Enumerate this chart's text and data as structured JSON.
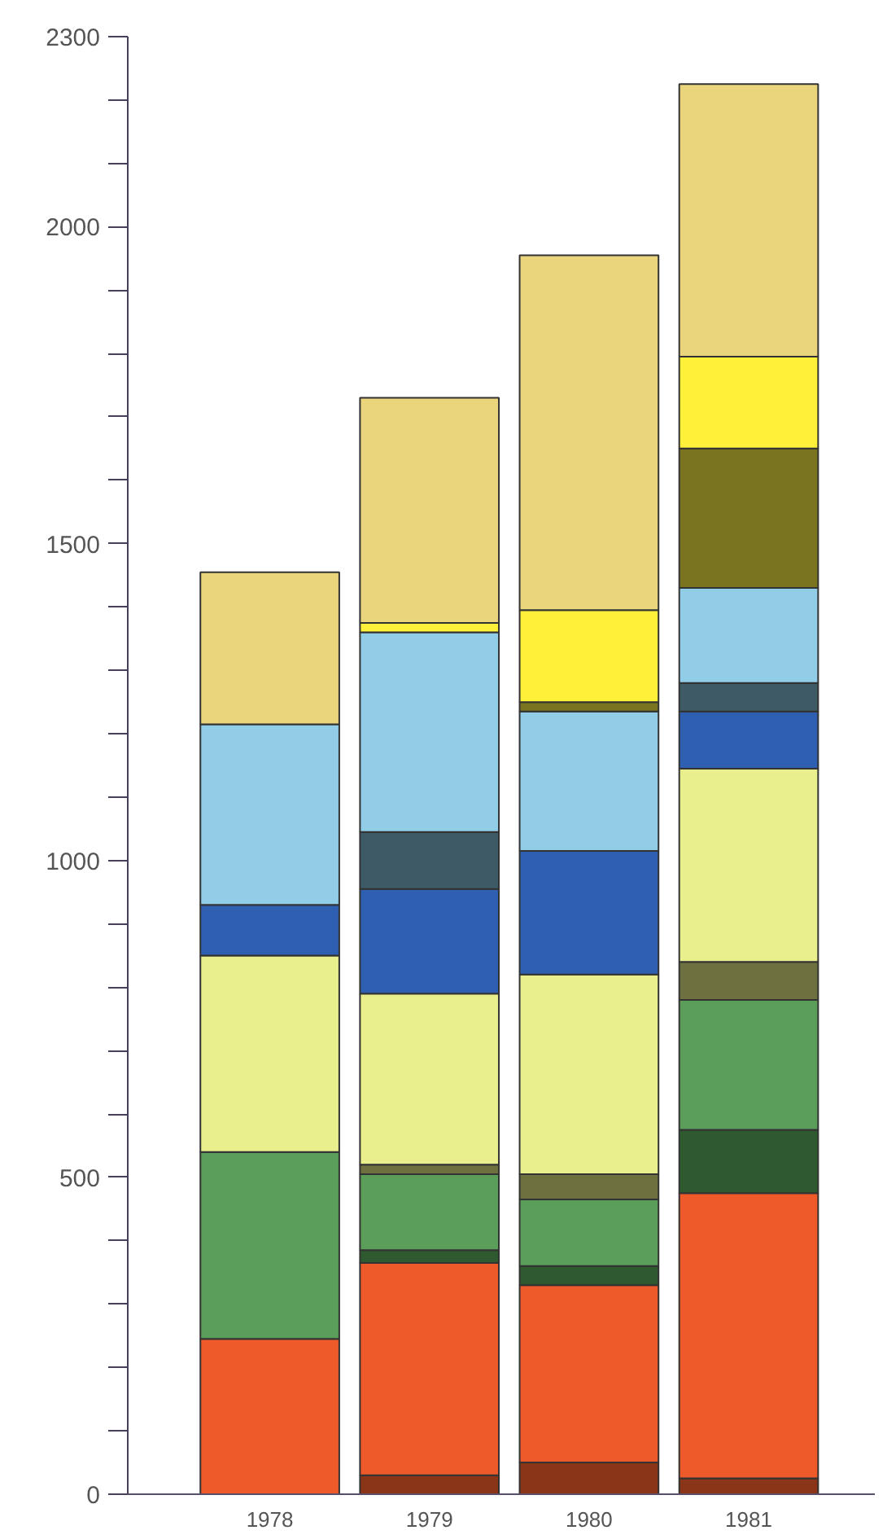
{
  "chart_data": {
    "type": "bar",
    "stacked": true,
    "categories": [
      "1978",
      "1979",
      "1980",
      "1981"
    ],
    "ylim": [
      0,
      2300
    ],
    "yticks": [
      0,
      {
        "value": 100,
        "label": null
      },
      {
        "value": 200,
        "label": null
      },
      {
        "value": 300,
        "label": null
      },
      {
        "value": 400,
        "label": null
      },
      500,
      {
        "value": 600,
        "label": null
      },
      {
        "value": 700,
        "label": null
      },
      {
        "value": 800,
        "label": null
      },
      {
        "value": 900,
        "label": null
      },
      1000,
      {
        "value": 1100,
        "label": null
      },
      {
        "value": 1200,
        "label": null
      },
      {
        "value": 1300,
        "label": null
      },
      {
        "value": 1400,
        "label": null
      },
      1500,
      {
        "value": 1600,
        "label": null
      },
      {
        "value": 1700,
        "label": null
      },
      {
        "value": 1800,
        "label": null
      },
      {
        "value": 1900,
        "label": null
      },
      2000,
      {
        "value": 2100,
        "label": null
      },
      {
        "value": 2200,
        "label": null
      },
      2300
    ],
    "grid": false,
    "series": [
      {
        "color": "#8a3418",
        "values": [
          null,
          30,
          50,
          25
        ]
      },
      {
        "color": "#ee5a2a",
        "values": [
          245,
          335,
          280,
          450
        ]
      },
      {
        "color": "#2f5a2f",
        "values": [
          null,
          20,
          30,
          100
        ]
      },
      {
        "color": "#5a9e5a",
        "values": [
          295,
          120,
          105,
          205
        ]
      },
      {
        "color": "#6e7040",
        "values": [
          null,
          15,
          40,
          60
        ]
      },
      {
        "color": "#e8ef8c",
        "values": [
          310,
          270,
          315,
          305
        ]
      },
      {
        "color": "#2f5fb0",
        "values": [
          80,
          165,
          195,
          90
        ]
      },
      {
        "color": "#3e5a66",
        "values": [
          null,
          90,
          null,
          45
        ]
      },
      {
        "color": "#92cde8",
        "values": [
          285,
          315,
          220,
          150
        ]
      },
      {
        "color": "#7a7420",
        "values": [
          null,
          null,
          15,
          220
        ]
      },
      {
        "color": "#fff03a",
        "values": [
          null,
          15,
          145,
          145
        ]
      },
      {
        "color": "#ead47c",
        "values": [
          240,
          355,
          560,
          430
        ]
      }
    ]
  }
}
